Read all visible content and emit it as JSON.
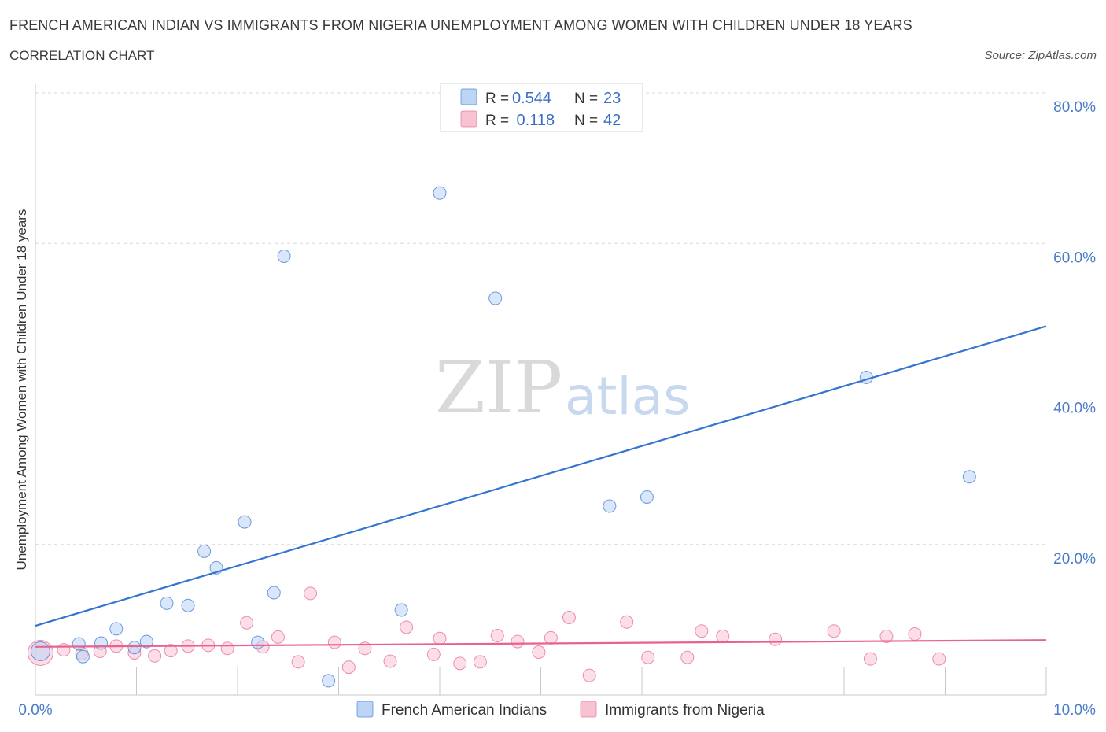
{
  "header": {
    "title": "FRENCH AMERICAN INDIAN VS IMMIGRANTS FROM NIGERIA UNEMPLOYMENT AMONG WOMEN WITH CHILDREN UNDER 18 YEARS",
    "subtitle": "CORRELATION CHART",
    "source": "Source: ZipAtlas.com"
  },
  "watermark": {
    "zip": "ZIP",
    "atlas": "atlas"
  },
  "colors": {
    "blue": "#3575d0",
    "blue_fill": "#bcd4f5",
    "pink": "#e8628c",
    "pink_fill": "#f7c3d3",
    "grid": "#d8d8d8",
    "tick_text": "#4a7cc7"
  },
  "legend": {
    "rows": [
      {
        "r_label": "R =",
        "r_value": "0.544",
        "n_label": "N =",
        "n_value": "23"
      },
      {
        "r_label": "R =",
        "r_value": " 0.118",
        "n_label": "N =",
        "n_value": "42"
      }
    ]
  },
  "chart_data": {
    "type": "scatter",
    "title": "FRENCH AMERICAN INDIAN VS IMMIGRANTS FROM NIGERIA UNEMPLOYMENT AMONG WOMEN WITH CHILDREN UNDER 18 YEARS",
    "xlabel": "",
    "ylabel": "Unemployment Among Women with Children Under 18 years",
    "xlim": [
      0,
      10
    ],
    "ylim": [
      0,
      80
    ],
    "x_tick_labels": [
      "0.0%",
      "10.0%"
    ],
    "y_ticks": [
      20,
      40,
      60,
      80
    ],
    "y_tick_labels": [
      "20.0%",
      "40.0%",
      "60.0%",
      "80.0%"
    ],
    "series": [
      {
        "name": "French American Indians",
        "color": "#3575d0",
        "fill": "#bcd4f5",
        "trend": {
          "x0": 0,
          "y0": 9.2,
          "x1": 10,
          "y1": 49.0
        },
        "points": [
          {
            "x": 0.05,
            "y": 5.8
          },
          {
            "x": 0.47,
            "y": 5.1
          },
          {
            "x": 0.43,
            "y": 6.8
          },
          {
            "x": 0.65,
            "y": 6.9
          },
          {
            "x": 0.8,
            "y": 8.8
          },
          {
            "x": 0.98,
            "y": 6.3
          },
          {
            "x": 1.1,
            "y": 7.1
          },
          {
            "x": 1.3,
            "y": 12.2
          },
          {
            "x": 1.51,
            "y": 11.9
          },
          {
            "x": 1.67,
            "y": 19.1
          },
          {
            "x": 1.79,
            "y": 16.9
          },
          {
            "x": 2.07,
            "y": 23.0
          },
          {
            "x": 2.2,
            "y": 7.0
          },
          {
            "x": 2.36,
            "y": 13.6
          },
          {
            "x": 2.46,
            "y": 58.3
          },
          {
            "x": 2.9,
            "y": 1.9
          },
          {
            "x": 3.62,
            "y": 11.3
          },
          {
            "x": 4.0,
            "y": 66.7
          },
          {
            "x": 4.55,
            "y": 52.7
          },
          {
            "x": 5.68,
            "y": 25.1
          },
          {
            "x": 6.05,
            "y": 26.3
          },
          {
            "x": 8.22,
            "y": 42.2
          },
          {
            "x": 9.24,
            "y": 29.0
          }
        ]
      },
      {
        "name": "Immigrants from Nigeria",
        "color": "#e8628c",
        "fill": "#f7c3d3",
        "trend": {
          "x0": 0,
          "y0": 6.4,
          "x1": 10,
          "y1": 7.3
        },
        "points": [
          {
            "x": 0.05,
            "y": 5.6
          },
          {
            "x": 0.28,
            "y": 6.0
          },
          {
            "x": 0.46,
            "y": 5.5
          },
          {
            "x": 0.64,
            "y": 5.8
          },
          {
            "x": 0.8,
            "y": 6.5
          },
          {
            "x": 0.98,
            "y": 5.6
          },
          {
            "x": 1.18,
            "y": 5.2
          },
          {
            "x": 1.34,
            "y": 5.9
          },
          {
            "x": 1.51,
            "y": 6.5
          },
          {
            "x": 1.71,
            "y": 6.6
          },
          {
            "x": 1.9,
            "y": 6.2
          },
          {
            "x": 2.09,
            "y": 9.6
          },
          {
            "x": 2.25,
            "y": 6.4
          },
          {
            "x": 2.4,
            "y": 7.7
          },
          {
            "x": 2.6,
            "y": 4.4
          },
          {
            "x": 2.72,
            "y": 13.5
          },
          {
            "x": 2.96,
            "y": 7.0
          },
          {
            "x": 3.1,
            "y": 3.7
          },
          {
            "x": 3.26,
            "y": 6.2
          },
          {
            "x": 3.51,
            "y": 4.5
          },
          {
            "x": 3.67,
            "y": 9.0
          },
          {
            "x": 3.94,
            "y": 5.4
          },
          {
            "x": 4.0,
            "y": 7.5
          },
          {
            "x": 4.2,
            "y": 4.2
          },
          {
            "x": 4.4,
            "y": 4.4
          },
          {
            "x": 4.57,
            "y": 7.9
          },
          {
            "x": 4.77,
            "y": 7.1
          },
          {
            "x": 4.98,
            "y": 5.7
          },
          {
            "x": 5.1,
            "y": 7.6
          },
          {
            "x": 5.28,
            "y": 10.3
          },
          {
            "x": 5.48,
            "y": 2.6
          },
          {
            "x": 5.85,
            "y": 9.7
          },
          {
            "x": 6.06,
            "y": 5.0
          },
          {
            "x": 6.45,
            "y": 5.0
          },
          {
            "x": 6.59,
            "y": 8.5
          },
          {
            "x": 6.8,
            "y": 7.8
          },
          {
            "x": 7.32,
            "y": 7.4
          },
          {
            "x": 7.9,
            "y": 8.5
          },
          {
            "x": 8.26,
            "y": 4.8
          },
          {
            "x": 8.42,
            "y": 7.8
          },
          {
            "x": 8.7,
            "y": 8.1
          },
          {
            "x": 8.94,
            "y": 4.8
          }
        ]
      }
    ]
  }
}
